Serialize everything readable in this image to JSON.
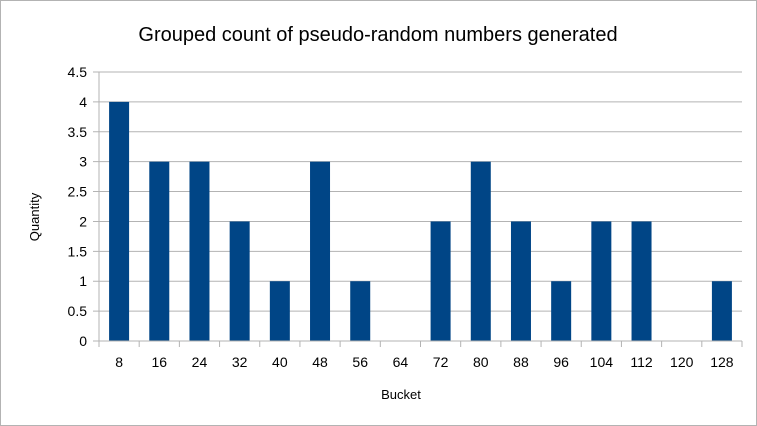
{
  "chart_data": {
    "type": "bar",
    "title": "Grouped count of pseudo-random numbers generated",
    "xlabel": "Bucket",
    "ylabel": "Quantity",
    "categories": [
      "8",
      "16",
      "24",
      "32",
      "40",
      "48",
      "56",
      "64",
      "72",
      "80",
      "88",
      "96",
      "104",
      "112",
      "120",
      "128"
    ],
    "values": [
      4,
      3,
      3,
      2,
      1,
      3,
      1,
      0,
      2,
      3,
      2,
      1,
      2,
      2,
      0,
      1
    ],
    "ylim": [
      0,
      4.5
    ],
    "ytick_step": 0.5,
    "yticks": [
      "0",
      "0.5",
      "1",
      "1.5",
      "2",
      "2.5",
      "3",
      "3.5",
      "4",
      "4.5"
    ],
    "grid": true,
    "legend": "none",
    "colors": {
      "bar": "#004586",
      "grid": "#b3b3b3",
      "axis": "#b3b3b3",
      "text": "#000000"
    }
  }
}
